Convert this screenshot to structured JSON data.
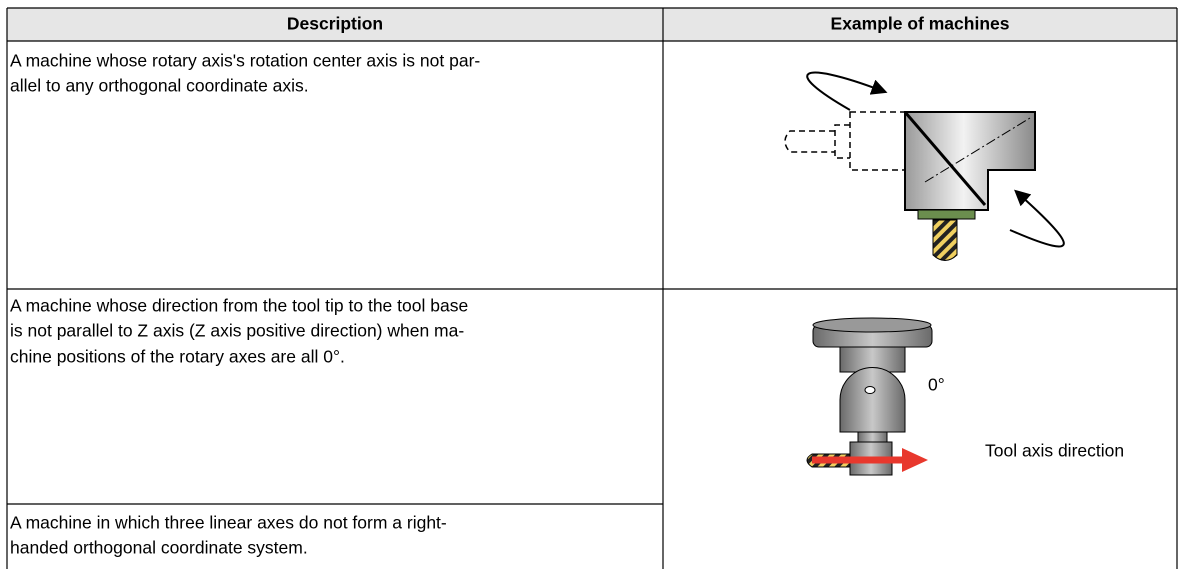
{
  "table": {
    "header": [
      "Description",
      "Example of machines"
    ],
    "rows": [
      {
        "description": [
          "A machine whose rotary axis's rotation center axis is not par-",
          "allel to any orthogonal coordinate axis."
        ]
      },
      {
        "description": [
          "A machine whose direction from the tool tip to the tool base",
          "is not parallel to Z axis (Z axis positive direction) when ma-",
          "chine positions of the rotary axes are all 0°."
        ]
      },
      {
        "description": [
          "A machine in which three linear axes do not form a right-",
          "handed orthogonal coordinate system."
        ]
      }
    ],
    "figure_labels": [
      "0°",
      "Tool axis direction"
    ]
  }
}
